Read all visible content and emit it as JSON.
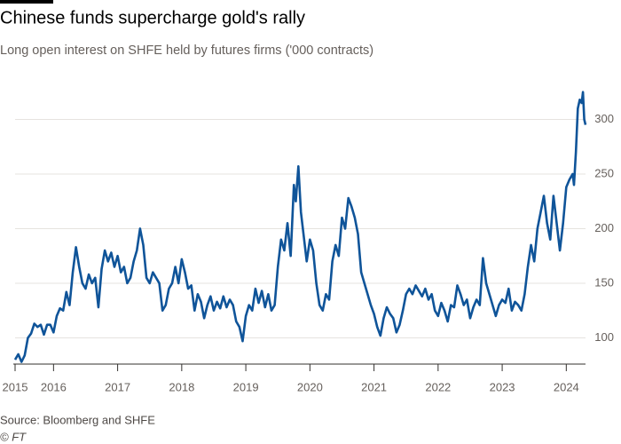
{
  "chart_data": {
    "type": "line",
    "title": "Chinese funds supercharge gold's rally",
    "subtitle": "Long open interest on SHFE held by futures firms ('000 contracts)",
    "source": "Source: Bloomberg and SHFE",
    "credit": "© FT",
    "x": [
      2015.4,
      2015.45,
      2015.5,
      2015.55,
      2015.6,
      2015.65,
      2015.7,
      2015.75,
      2015.8,
      2015.85,
      2015.9,
      2015.95,
      2016.0,
      2016.05,
      2016.1,
      2016.15,
      2016.2,
      2016.25,
      2016.3,
      2016.35,
      2016.4,
      2016.45,
      2016.5,
      2016.55,
      2016.6,
      2016.65,
      2016.7,
      2016.75,
      2016.8,
      2016.85,
      2016.9,
      2016.95,
      2017.0,
      2017.05,
      2017.1,
      2017.15,
      2017.2,
      2017.25,
      2017.3,
      2017.35,
      2017.4,
      2017.45,
      2017.5,
      2017.55,
      2017.6,
      2017.65,
      2017.7,
      2017.75,
      2017.8,
      2017.85,
      2017.9,
      2017.95,
      2018.0,
      2018.05,
      2018.1,
      2018.15,
      2018.2,
      2018.25,
      2018.3,
      2018.35,
      2018.4,
      2018.45,
      2018.5,
      2018.55,
      2018.6,
      2018.65,
      2018.7,
      2018.75,
      2018.8,
      2018.85,
      2018.9,
      2018.95,
      2019.0,
      2019.05,
      2019.1,
      2019.15,
      2019.2,
      2019.25,
      2019.3,
      2019.35,
      2019.4,
      2019.45,
      2019.5,
      2019.55,
      2019.6,
      2019.65,
      2019.7,
      2019.75,
      2019.78,
      2019.82,
      2019.86,
      2019.9,
      2019.95,
      2020.0,
      2020.05,
      2020.1,
      2020.15,
      2020.2,
      2020.25,
      2020.3,
      2020.35,
      2020.4,
      2020.45,
      2020.5,
      2020.55,
      2020.6,
      2020.65,
      2020.7,
      2020.75,
      2020.8,
      2020.85,
      2020.9,
      2020.95,
      2021.0,
      2021.05,
      2021.1,
      2021.15,
      2021.2,
      2021.25,
      2021.3,
      2021.35,
      2021.4,
      2021.45,
      2021.5,
      2021.55,
      2021.6,
      2021.65,
      2021.7,
      2021.75,
      2021.8,
      2021.85,
      2021.9,
      2021.95,
      2022.0,
      2022.05,
      2022.1,
      2022.15,
      2022.2,
      2022.25,
      2022.3,
      2022.35,
      2022.4,
      2022.45,
      2022.5,
      2022.55,
      2022.6,
      2022.65,
      2022.7,
      2022.75,
      2022.8,
      2022.85,
      2022.9,
      2022.95,
      2023.0,
      2023.05,
      2023.1,
      2023.15,
      2023.2,
      2023.25,
      2023.3,
      2023.35,
      2023.4,
      2023.45,
      2023.5,
      2023.55,
      2023.6,
      2023.65,
      2023.7,
      2023.75,
      2023.8,
      2023.85,
      2023.9,
      2023.95,
      2024.0,
      2024.05,
      2024.1,
      2024.12,
      2024.15,
      2024.18,
      2024.21,
      2024.24,
      2024.26,
      2024.28,
      2024.3
    ],
    "series": [
      {
        "color": "#0f5499",
        "values": [
          80,
          85,
          78,
          84,
          100,
          104,
          113,
          110,
          112,
          103,
          112,
          112,
          105,
          120,
          127,
          125,
          142,
          130,
          160,
          183,
          165,
          150,
          145,
          158,
          150,
          155,
          128,
          163,
          180,
          170,
          178,
          165,
          175,
          160,
          165,
          150,
          155,
          170,
          180,
          200,
          185,
          155,
          150,
          160,
          155,
          150,
          125,
          130,
          145,
          150,
          165,
          150,
          172,
          160,
          145,
          148,
          125,
          140,
          133,
          118,
          130,
          138,
          125,
          133,
          127,
          138,
          128,
          135,
          130,
          115,
          110,
          97,
          120,
          130,
          125,
          145,
          132,
          143,
          128,
          140,
          125,
          130,
          165,
          190,
          180,
          205,
          175,
          240,
          225,
          257,
          215,
          195,
          170,
          190,
          180,
          150,
          130,
          125,
          140,
          135,
          170,
          185,
          175,
          210,
          200,
          228,
          220,
          210,
          195,
          160,
          150,
          140,
          130,
          122,
          110,
          102,
          118,
          128,
          122,
          118,
          105,
          112,
          125,
          140,
          145,
          140,
          148,
          143,
          138,
          145,
          135,
          140,
          125,
          120,
          132,
          125,
          115,
          130,
          128,
          148,
          140,
          130,
          135,
          118,
          128,
          135,
          130,
          173,
          150,
          140,
          130,
          120,
          130,
          135,
          132,
          145,
          125,
          133,
          130,
          125,
          140,
          165,
          185,
          170,
          200,
          215,
          230,
          205,
          190,
          230,
          205,
          180,
          205,
          238,
          245,
          250,
          240,
          270,
          310,
          318,
          315,
          325,
          300,
          295
        ]
      }
    ],
    "xlim": [
      2015.4,
      2024.3
    ],
    "xticks": [
      {
        "value": 2015.4,
        "label": "2015"
      },
      2016,
      2017,
      2018,
      2019,
      2020,
      2021,
      2022,
      2023,
      2024
    ],
    "ylim": [
      76,
      328
    ],
    "yticks": [
      100,
      150,
      200,
      250,
      300
    ],
    "grid": true
  }
}
